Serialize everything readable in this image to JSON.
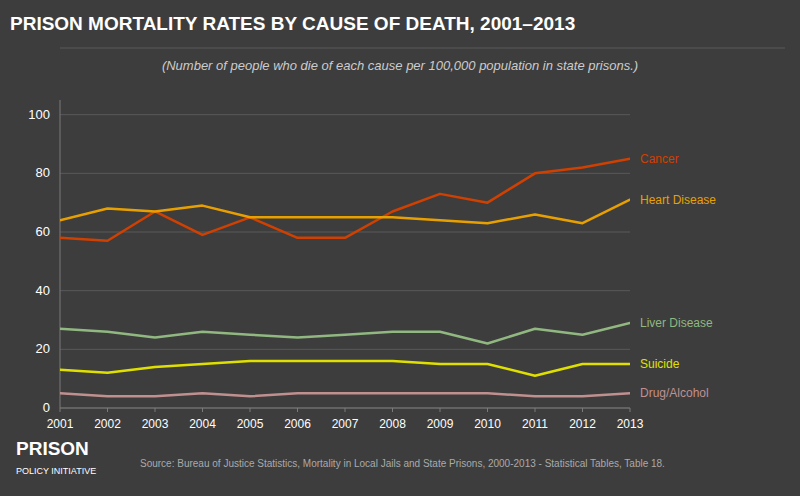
{
  "chart_data": {
    "type": "line",
    "title": "PRISON MORTALITY RATES BY CAUSE OF DEATH, 2001–2013",
    "subtitle": "(Number of people who die of each cause per 100,000 population in state prisons.)",
    "source": "Source: Bureau of Justice Statistics, Mortality in Local Jails and State Prisons, 2000-2013 - Statistical Tables, Table 18.",
    "annotations": [
      "PRISON",
      "POLICY INITIATIVE"
    ],
    "x": [
      2001,
      2002,
      2003,
      2004,
      2005,
      2006,
      2007,
      2008,
      2009,
      2010,
      2011,
      2012,
      2013
    ],
    "series": [
      {
        "name": "Cancer",
        "color": "#d04000",
        "values": [
          58,
          57,
          67,
          59,
          65,
          58,
          58,
          67,
          73,
          70,
          80,
          82,
          85
        ]
      },
      {
        "name": "Heart Disease",
        "color": "#e8a000",
        "values": [
          64,
          68,
          67,
          69,
          65,
          65,
          65,
          65,
          64,
          63,
          66,
          63,
          71
        ]
      },
      {
        "name": "Liver Disease",
        "color": "#90b880",
        "values": [
          27,
          26,
          24,
          26,
          25,
          24,
          25,
          26,
          26,
          22,
          27,
          25,
          29
        ]
      },
      {
        "name": "Suicide",
        "color": "#e0e000",
        "values": [
          13,
          12,
          14,
          15,
          16,
          16,
          16,
          16,
          15,
          15,
          11,
          15,
          15
        ]
      },
      {
        "name": "Drug/Alcohol",
        "color": "#c09090",
        "values": [
          5,
          4,
          4,
          5,
          4,
          5,
          5,
          5,
          5,
          5,
          4,
          4,
          5
        ]
      }
    ],
    "xlim": [
      2001,
      2013
    ],
    "xticks": [
      2001,
      2002,
      2003,
      2004,
      2005,
      2006,
      2007,
      2008,
      2009,
      2010,
      2011,
      2012,
      2013
    ],
    "ylim": [
      0,
      105
    ],
    "yticks": [
      0,
      20,
      40,
      60,
      80,
      100
    ],
    "grid": true
  }
}
